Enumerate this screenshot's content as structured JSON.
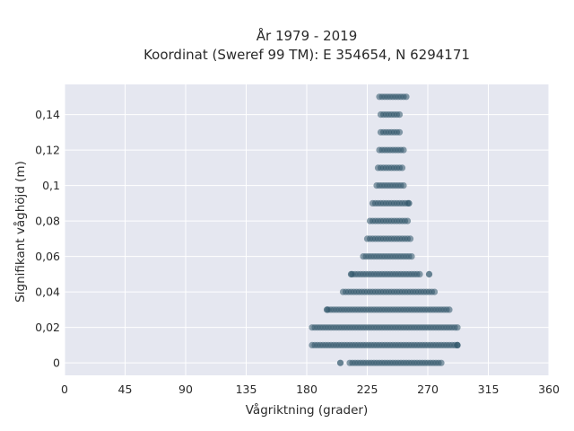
{
  "chart_data": {
    "type": "scatter",
    "title": "År 1979 - 2019",
    "subtitle": "Koordinat (Sweref 99 TM): E 354654, N 6294171",
    "xlabel": "Vågriktning (grader)",
    "ylabel": "Signifikant våghöjd (m)",
    "xlim": [
      0,
      360
    ],
    "ylim": [
      -0.007,
      0.157
    ],
    "x_ticks": [
      "0",
      "45",
      "90",
      "135",
      "180",
      "225",
      "270",
      "315",
      "360"
    ],
    "x_tick_values": [
      0,
      45,
      90,
      135,
      180,
      225,
      270,
      315,
      360
    ],
    "y_ticks": [
      "0",
      "0,02",
      "0,04",
      "0,06",
      "0,08",
      "0,1",
      "0,12",
      "0,14"
    ],
    "y_tick_values": [
      0,
      0.02,
      0.04,
      0.06,
      0.08,
      0.1,
      0.12,
      0.14
    ],
    "grid": true,
    "background_color": "#e5e7f0",
    "marker_color": "#2e5468",
    "series": [
      {
        "bands": [
          {
            "y": 0.0,
            "x_min": 212,
            "x_max": 280,
            "outliers": [
              205
            ]
          },
          {
            "y": 0.01,
            "x_min": 184,
            "x_max": 292,
            "outliers": [
              292
            ]
          },
          {
            "y": 0.02,
            "x_min": 184,
            "x_max": 293,
            "outliers": []
          },
          {
            "y": 0.03,
            "x_min": 196,
            "x_max": 286,
            "outliers": [
              195
            ]
          },
          {
            "y": 0.04,
            "x_min": 207,
            "x_max": 275,
            "outliers": []
          },
          {
            "y": 0.05,
            "x_min": 214,
            "x_max": 265,
            "outliers": [
              213,
              271
            ]
          },
          {
            "y": 0.06,
            "x_min": 222,
            "x_max": 258,
            "outliers": []
          },
          {
            "y": 0.07,
            "x_min": 225,
            "x_max": 258,
            "outliers": []
          },
          {
            "y": 0.08,
            "x_min": 227,
            "x_max": 256,
            "outliers": []
          },
          {
            "y": 0.09,
            "x_min": 229,
            "x_max": 255,
            "outliers": [
              256
            ]
          },
          {
            "y": 0.1,
            "x_min": 232,
            "x_max": 252,
            "outliers": []
          },
          {
            "y": 0.11,
            "x_min": 233,
            "x_max": 252,
            "outliers": []
          },
          {
            "y": 0.12,
            "x_min": 234,
            "x_max": 252,
            "outliers": []
          },
          {
            "y": 0.13,
            "x_min": 235,
            "x_max": 250,
            "outliers": []
          },
          {
            "y": 0.14,
            "x_min": 235,
            "x_max": 250,
            "outliers": []
          },
          {
            "y": 0.15,
            "x_min": 234,
            "x_max": 255,
            "outliers": []
          }
        ]
      }
    ]
  }
}
